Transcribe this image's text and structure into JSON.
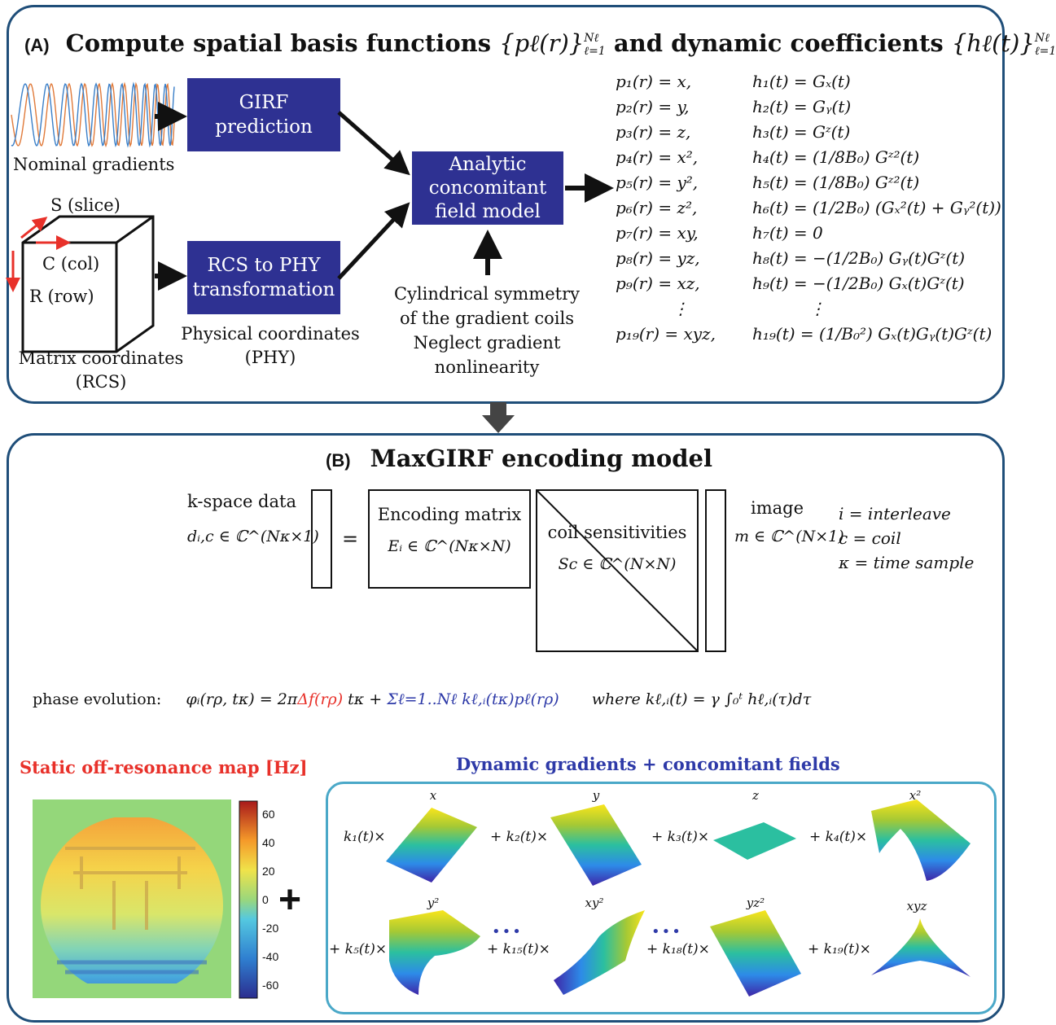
{
  "panel_a": {
    "tag": "(A)",
    "title": "Compute spatial basis functions {pℓ(r)}ℓ=1..Nℓ and dynamic coefficients {hℓ(t)}ℓ=1..Nℓ",
    "title_main": "Compute spatial basis functions",
    "title_set1": "{pℓ(r)}",
    "title_mid": "and dynamic coefficients",
    "title_set2": "{hℓ(t)}",
    "title_sup": "Nℓ",
    "title_sub": "ℓ=1",
    "nominal_gradients": "Nominal gradients",
    "girf_box": [
      "GIRF",
      "prediction"
    ],
    "rcs_box": [
      "RCS to PHY",
      "transformation"
    ],
    "model_box": [
      "Analytic",
      "concomitant",
      "field model"
    ],
    "axes": {
      "s": "S (slice)",
      "c": "C (col)",
      "r": "R (row)"
    },
    "matrix_coords": [
      "Matrix coordinates",
      "(RCS)"
    ],
    "physical_coords": [
      "Physical coordinates",
      "(PHY)"
    ],
    "assumptions": [
      "Cylindrical symmetry",
      "of the gradient coils",
      "Neglect gradient",
      "nonlinearity"
    ],
    "basis": [
      {
        "p": "p₁(r) = x,",
        "h": "h₁(t) = Gₓ(t)"
      },
      {
        "p": "p₂(r) = y,",
        "h": "h₂(t) = Gᵧ(t)"
      },
      {
        "p": "p₃(r) = z,",
        "h": "h₃(t) = Gᶻ(t)"
      },
      {
        "p": "p₄(r) = x²,",
        "h": "h₄(t) = (1/8B₀) Gᶻ²(t)"
      },
      {
        "p": "p₅(r) = y²,",
        "h": "h₅(t) = (1/8B₀) Gᶻ²(t)"
      },
      {
        "p": "p₆(r) = z²,",
        "h": "h₆(t) = (1/2B₀) (Gₓ²(t) + Gᵧ²(t))"
      },
      {
        "p": "p₇(r) = xy,",
        "h": "h₇(t) = 0"
      },
      {
        "p": "p₈(r) = yz,",
        "h": "h₈(t) = −(1/2B₀) Gᵧ(t)Gᶻ(t)"
      },
      {
        "p": "p₉(r) = xz,",
        "h": "h₉(t) = −(1/2B₀) Gₓ(t)Gᶻ(t)"
      },
      {
        "p": "⋮",
        "h": "⋮"
      },
      {
        "p": "p₁₉(r) = xyz,",
        "h": "h₁₉(t) = (1/B₀²) Gₓ(t)Gᵧ(t)Gᶻ(t)"
      }
    ]
  },
  "panel_b": {
    "tag": "(B)",
    "title": "MaxGIRF encoding model",
    "kspace_label": "k-space data",
    "kspace_symbol": "dᵢ,c ∈ ℂ^(Nκ×1)",
    "equals": "=",
    "encoding_label": "Encoding matrix",
    "encoding_symbol": "Eᵢ ∈ ℂ^(Nκ×N)",
    "coil_label": "coil sensitivities",
    "coil_symbol": "Sc ∈ ℂ^(N×N)",
    "image_label": "image",
    "image_symbol": "m ∈ ℂ^(N×1)",
    "legend": [
      "i = interleave",
      "c = coil",
      "κ = time sample"
    ],
    "phase_label": "phase evolution:",
    "phase_lhs": "φᵢ(rρ, tκ) = 2π",
    "phase_red": "Δf(rρ)",
    "phase_mid": "tκ +",
    "phase_blue": "Σℓ=1..Nℓ kℓ,ᵢ(tκ)pℓ(rρ)",
    "phase_where": "where  kℓ,ᵢ(t) = γ ∫₀ᵗ hℓ,ᵢ(τ)dτ",
    "offres_title": "Static off-resonance map [Hz]",
    "colorbar_ticks": [
      "60",
      "40",
      "20",
      "0",
      "-20",
      "-40",
      "-60"
    ],
    "plus": "+",
    "dyn_title": "Dynamic gradients + concomitant fields",
    "terms": [
      {
        "coef": "k₁(t)×",
        "label": "x"
      },
      {
        "coef": "+ k₂(t)×",
        "label": "y"
      },
      {
        "coef": "+ k₃(t)×",
        "label": "z"
      },
      {
        "coef": "+ k₄(t)×",
        "label": "x²"
      },
      {
        "coef": "+ k₅(t)×",
        "label": "y²"
      },
      {
        "coef": "+ k₁₅(t)×",
        "label": "xy²"
      },
      {
        "coef": "+ k₁₈(t)×",
        "label": "yz²"
      },
      {
        "coef": "+ k₁₉(t)×",
        "label": "xyz"
      }
    ],
    "ellipsis": "•••"
  },
  "colors": {
    "border": "#1f4e79",
    "box": "#2e3192",
    "red": "#e8312a",
    "blue": "#2e3aa8",
    "inner_border": "#4aa8c8"
  }
}
